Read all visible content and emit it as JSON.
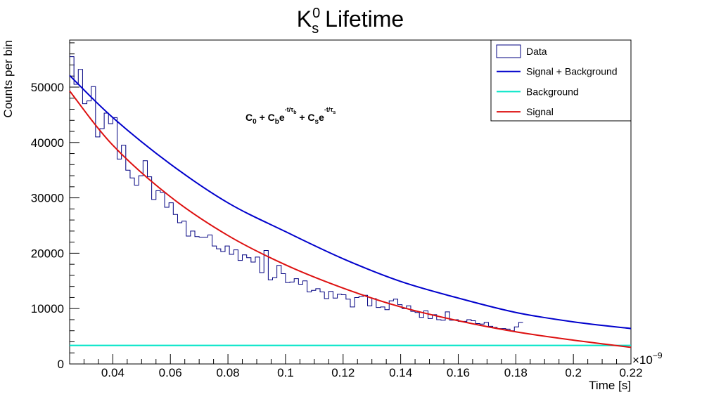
{
  "chart_data": {
    "type": "line",
    "title": {
      "main": "K",
      "sup": "0",
      "sub": "s",
      "rest": " Lifetime"
    },
    "xlabel": "Time [s]",
    "ylabel": "Counts per bin",
    "x_exponent": {
      "base": "×10",
      "power": "−9"
    },
    "xlim": [
      0.025,
      0.22
    ],
    "ylim": [
      0,
      58500
    ],
    "x_ticks": [
      0.04,
      0.06,
      0.08,
      0.1,
      0.12,
      0.14,
      0.16,
      0.18,
      0.2,
      0.22
    ],
    "x_tick_labels": [
      "0.04",
      "0.06",
      "0.08",
      "0.1",
      "0.12",
      "0.14",
      "0.16",
      "0.18",
      "0.2",
      "0.22"
    ],
    "y_ticks": [
      0,
      10000,
      20000,
      30000,
      40000,
      50000
    ],
    "y_tick_labels": [
      "0",
      "10000",
      "20000",
      "30000",
      "40000",
      "50000"
    ],
    "annotation": {
      "parts": [
        {
          "t": "C",
          "k": "n"
        },
        {
          "t": "0",
          "k": "sub"
        },
        {
          "t": " + C",
          "k": "n"
        },
        {
          "t": "b",
          "k": "sub"
        },
        {
          "t": "e",
          "k": "n"
        },
        {
          "t": "-t/τ",
          "k": "sup"
        },
        {
          "t": "b",
          "k": "supsub"
        },
        {
          "t": " + C",
          "k": "n"
        },
        {
          "t": "s",
          "k": "sub"
        },
        {
          "t": "e",
          "k": "n"
        },
        {
          "t": "-t/τ",
          "k": "sup"
        },
        {
          "t": "s",
          "k": "supsub"
        }
      ]
    },
    "legend": {
      "position": "top-right",
      "entries": [
        {
          "label": "Data",
          "style": "box",
          "color": "#000080"
        },
        {
          "label": "Signal + Background",
          "style": "line",
          "color": "#0000cc"
        },
        {
          "label": "Background",
          "style": "line",
          "color": "#00e5c8"
        },
        {
          "label": "Signal",
          "style": "line",
          "color": "#dd1010"
        }
      ]
    },
    "histogram": {
      "name": "Data",
      "bin_width": 0.0015,
      "x_start": 0.025,
      "values": [
        55500,
        50500,
        53200,
        47000,
        47500,
        50100,
        41000,
        42500,
        45300,
        43400,
        44500,
        37000,
        39500,
        35000,
        33600,
        32300,
        34000,
        36700,
        33800,
        29700,
        31300,
        31000,
        28300,
        29100,
        27000,
        25500,
        25800,
        23100,
        24000,
        23000,
        22900,
        22900,
        23300,
        21300,
        20800,
        20300,
        21300,
        19800,
        20600,
        18700,
        19700,
        19200,
        18400,
        19300,
        16500,
        20500,
        15200,
        15600,
        17800,
        16300,
        14700,
        14800,
        15400,
        14400,
        15000,
        13000,
        13300,
        13600,
        13000,
        11800,
        13100,
        11900,
        12600,
        12500,
        11700,
        10300,
        12000,
        12200,
        12400,
        10500,
        11800,
        10200,
        10300,
        9800,
        11400,
        11700,
        10700,
        10000,
        10500,
        9500,
        9300,
        8400,
        9600,
        8200,
        8900,
        8000,
        7900,
        9400,
        7900,
        8000,
        7700,
        7700,
        8000,
        7800,
        7300,
        7200,
        7500,
        6800,
        6600,
        6400,
        6400,
        6300,
        6000,
        6700,
        7500
      ]
    },
    "series": [
      {
        "name": "Signal + Background",
        "color": "#0000cc",
        "points": [
          [
            0.025,
            52100
          ],
          [
            0.04,
            44500
          ],
          [
            0.06,
            36100
          ],
          [
            0.08,
            29100
          ],
          [
            0.1,
            23900
          ],
          [
            0.12,
            19000
          ],
          [
            0.14,
            14900
          ],
          [
            0.16,
            11900
          ],
          [
            0.18,
            9300
          ],
          [
            0.2,
            7600
          ],
          [
            0.22,
            6400
          ]
        ]
      },
      {
        "name": "Background",
        "color": "#00e5c8",
        "points": [
          [
            0.025,
            3350
          ],
          [
            0.22,
            3350
          ]
        ]
      },
      {
        "name": "Signal",
        "color": "#dd1010",
        "points": [
          [
            0.025,
            49300
          ],
          [
            0.04,
            39500
          ],
          [
            0.06,
            30200
          ],
          [
            0.08,
            23200
          ],
          [
            0.1,
            17900
          ],
          [
            0.12,
            13700
          ],
          [
            0.14,
            10300
          ],
          [
            0.16,
            7800
          ],
          [
            0.18,
            5800
          ],
          [
            0.2,
            4300
          ],
          [
            0.22,
            3000
          ]
        ]
      }
    ]
  }
}
